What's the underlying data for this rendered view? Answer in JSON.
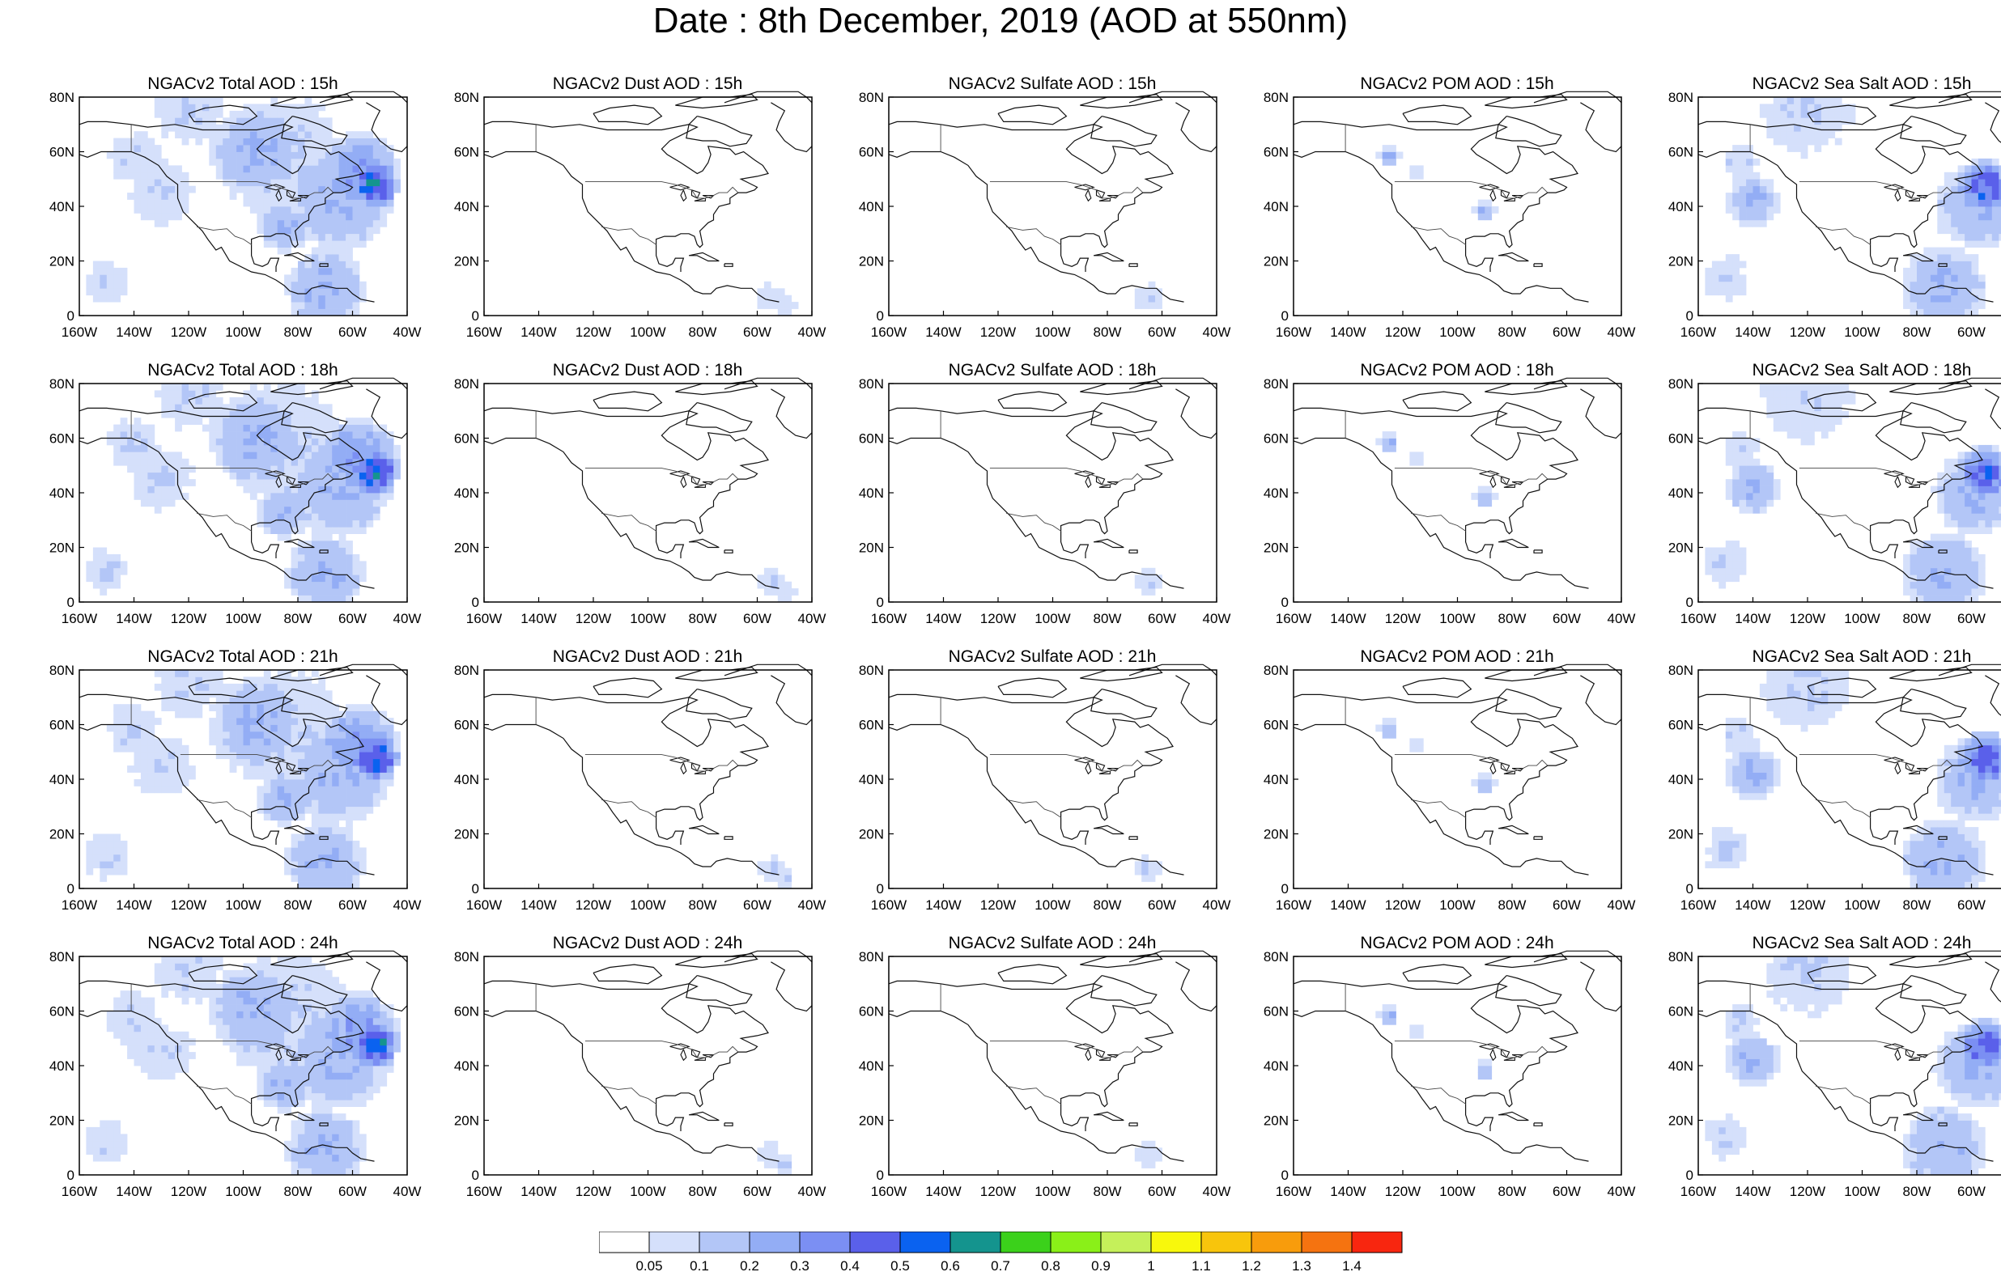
{
  "title": "Date : 8th December, 2019 (AOD at 550nm)",
  "axes": {
    "x_ticks": [
      "160W",
      "140W",
      "120W",
      "100W",
      "80W",
      "60W",
      "40W"
    ],
    "y_ticks": [
      "0",
      "20N",
      "40N",
      "60N",
      "80N"
    ],
    "x_range": [
      -160,
      -40
    ],
    "y_range": [
      0,
      80
    ]
  },
  "panels": [
    {
      "title": "NGACv2 Total AOD : 15h",
      "species": "total"
    },
    {
      "title": "NGACv2 Dust AOD : 15h",
      "species": "dust"
    },
    {
      "title": "NGACv2 Sulfate AOD : 15h",
      "species": "sulfate"
    },
    {
      "title": "NGACv2 POM AOD : 15h",
      "species": "pom"
    },
    {
      "title": "NGACv2 Sea Salt AOD : 15h",
      "species": "seasalt"
    },
    {
      "title": "NGACv2 Total AOD : 18h",
      "species": "total"
    },
    {
      "title": "NGACv2 Dust AOD : 18h",
      "species": "dust"
    },
    {
      "title": "NGACv2 Sulfate AOD : 18h",
      "species": "sulfate"
    },
    {
      "title": "NGACv2 POM AOD : 18h",
      "species": "pom"
    },
    {
      "title": "NGACv2 Sea Salt AOD : 18h",
      "species": "seasalt"
    },
    {
      "title": "NGACv2 Total AOD : 21h",
      "species": "total"
    },
    {
      "title": "NGACv2 Dust AOD : 21h",
      "species": "dust"
    },
    {
      "title": "NGACv2 Sulfate AOD : 21h",
      "species": "sulfate"
    },
    {
      "title": "NGACv2 POM AOD : 21h",
      "species": "pom"
    },
    {
      "title": "NGACv2 Sea Salt AOD : 21h",
      "species": "seasalt"
    },
    {
      "title": "NGACv2 Total AOD : 24h",
      "species": "total"
    },
    {
      "title": "NGACv2 Dust AOD : 24h",
      "species": "dust"
    },
    {
      "title": "NGACv2 Sulfate AOD : 24h",
      "species": "sulfate"
    },
    {
      "title": "NGACv2 POM AOD : 24h",
      "species": "pom"
    },
    {
      "title": "NGACv2 Sea Salt  AOD : 24h",
      "species": "seasalt"
    }
  ],
  "colorbar": {
    "labels": [
      "0.05",
      "0.1",
      "0.2",
      "0.3",
      "0.4",
      "0.5",
      "0.6",
      "0.7",
      "0.8",
      "0.9",
      "1",
      "1.1",
      "1.2",
      "1.3",
      "1.4"
    ],
    "colors": [
      "#ffffff",
      "#d5e0fb",
      "#b3c6f7",
      "#93adf5",
      "#7b8ff3",
      "#5a60ea",
      "#0a62f0",
      "#14948e",
      "#3bd11b",
      "#8af018",
      "#c5f05a",
      "#f8f80c",
      "#f8c50c",
      "#f89c0c",
      "#f57310",
      "#f8260f"
    ]
  }
}
